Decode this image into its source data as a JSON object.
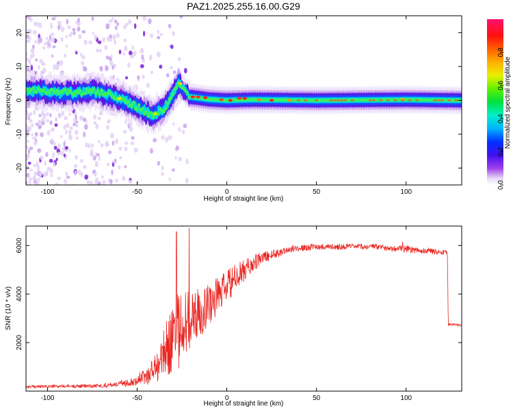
{
  "title": "PAZ1.2025.255.16.00.G29",
  "chart_data": [
    {
      "type": "heatmap",
      "xlabel": "Height of straight line (km)",
      "ylabel": "Frequency (Hz)",
      "xlim": [
        -112,
        131
      ],
      "ylim": [
        -25,
        25
      ],
      "xticks": [
        -100,
        -50,
        0,
        50,
        100
      ],
      "yticks": [
        -20,
        -10,
        0,
        10,
        20
      ],
      "colorbar": {
        "label": "Normalized spectral amplitude",
        "range": [
          0,
          1
        ],
        "ticks": [
          "0.0",
          "0.2",
          "0.4",
          "0.6",
          "0.8"
        ]
      },
      "ridge": [
        {
          "x": -112,
          "y": 3
        },
        {
          "x": -100,
          "y": 2.5
        },
        {
          "x": -85,
          "y": 2.2
        },
        {
          "x": -75,
          "y": 2.8
        },
        {
          "x": -65,
          "y": 1.5
        },
        {
          "x": -55,
          "y": -0.5
        },
        {
          "x": -48,
          "y": -2.5
        },
        {
          "x": -42,
          "y": -4.5
        },
        {
          "x": -35,
          "y": -2.5
        },
        {
          "x": -30,
          "y": 1.5
        },
        {
          "x": -27,
          "y": 5
        },
        {
          "x": -24,
          "y": 3
        },
        {
          "x": -20,
          "y": 1
        },
        {
          "x": -10,
          "y": 0.3
        },
        {
          "x": 0,
          "y": 0
        },
        {
          "x": 15,
          "y": 0.2
        },
        {
          "x": 50,
          "y": 0
        },
        {
          "x": 100,
          "y": 0.2
        },
        {
          "x": 131,
          "y": 0
        }
      ]
    },
    {
      "type": "line",
      "xlabel": "Height of straight line (km)",
      "ylabel": "SNR (10 * v/v)",
      "xlim": [
        -112,
        131
      ],
      "ylim": [
        0,
        6800
      ],
      "xticks": [
        -100,
        -50,
        0,
        50,
        100
      ],
      "yticks": [
        2000,
        4000,
        6000
      ],
      "series": [
        {
          "name": "SNR",
          "color": "#e8231e",
          "envelope": [
            {
              "x": -112,
              "mean": 180,
              "noise": 60
            },
            {
              "x": -70,
              "mean": 220,
              "noise": 80
            },
            {
              "x": -55,
              "mean": 350,
              "noise": 150
            },
            {
              "x": -45,
              "mean": 600,
              "noise": 350
            },
            {
              "x": -38,
              "mean": 1100,
              "noise": 700
            },
            {
              "x": -32,
              "mean": 2000,
              "noise": 1300
            },
            {
              "x": -25,
              "mean": 2800,
              "noise": 1800
            },
            {
              "x": -20,
              "mean": 2900,
              "noise": 1200
            },
            {
              "x": -10,
              "mean": 3600,
              "noise": 900
            },
            {
              "x": 0,
              "mean": 4300,
              "noise": 700
            },
            {
              "x": 10,
              "mean": 5000,
              "noise": 450
            },
            {
              "x": 20,
              "mean": 5500,
              "noise": 250
            },
            {
              "x": 35,
              "mean": 5850,
              "noise": 150
            },
            {
              "x": 50,
              "mean": 5950,
              "noise": 120
            },
            {
              "x": 80,
              "mean": 5950,
              "noise": 120
            },
            {
              "x": 100,
              "mean": 5850,
              "noise": 150
            },
            {
              "x": 123,
              "mean": 5700,
              "noise": 100
            },
            {
              "x": 123.5,
              "mean": 2750,
              "noise": 50
            },
            {
              "x": 131,
              "mean": 2720,
              "noise": 50
            }
          ]
        }
      ]
    }
  ]
}
